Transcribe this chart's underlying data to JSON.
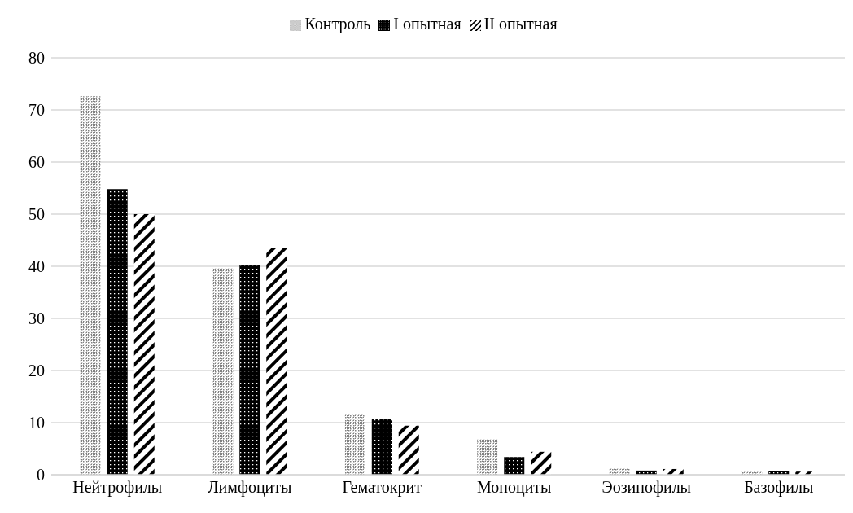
{
  "chart_data": {
    "type": "bar",
    "categories": [
      "Нейтрофилы",
      "Лимфоциты",
      "Гематокрит",
      "Моноциты",
      "Эозинофилы",
      "Базофилы"
    ],
    "series": [
      {
        "name": "Контроль",
        "color": "#808080",
        "values": [
          72.6,
          39.6,
          11.6,
          6.8,
          1.2,
          0.6
        ]
      },
      {
        "name": "I опытная",
        "color": "#000000",
        "values": [
          54.8,
          40.3,
          10.8,
          3.4,
          0.8,
          0.7
        ]
      },
      {
        "name": "II опытная",
        "color": "#000000",
        "values": [
          50,
          43.5,
          9.4,
          4.4,
          1.1,
          0.6
        ]
      }
    ],
    "ylim": [
      0,
      80
    ],
    "yticks": [
      0,
      10,
      20,
      30,
      40,
      50,
      60,
      70,
      80
    ],
    "grid": "y",
    "legend": "top"
  }
}
